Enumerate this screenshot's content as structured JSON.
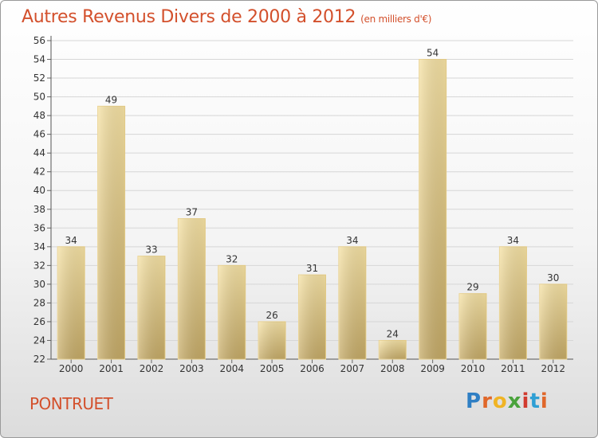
{
  "chart_data": {
    "type": "bar",
    "title": "Autres Revenus Divers de 2000 à 2012",
    "subtitle": "(en milliers d'€)",
    "categories": [
      "2000",
      "2001",
      "2002",
      "2003",
      "2004",
      "2005",
      "2006",
      "2007",
      "2008",
      "2009",
      "2010",
      "2011",
      "2012"
    ],
    "values": [
      34,
      49,
      33,
      37,
      32,
      26,
      31,
      34,
      24,
      54,
      29,
      34,
      30
    ],
    "ylim": [
      22,
      56
    ],
    "yticks": [
      22,
      24,
      26,
      28,
      30,
      32,
      34,
      36,
      38,
      40,
      42,
      44,
      46,
      48,
      50,
      52,
      54,
      56
    ],
    "grid": true,
    "xlabel": "",
    "ylabel": "",
    "colors": {
      "bar_light": "#f4dc98",
      "bar_dark": "#c7ad6a",
      "title": "#d3502c"
    }
  },
  "footer": {
    "place": "PONTRUET",
    "logo": "Proxiti"
  }
}
